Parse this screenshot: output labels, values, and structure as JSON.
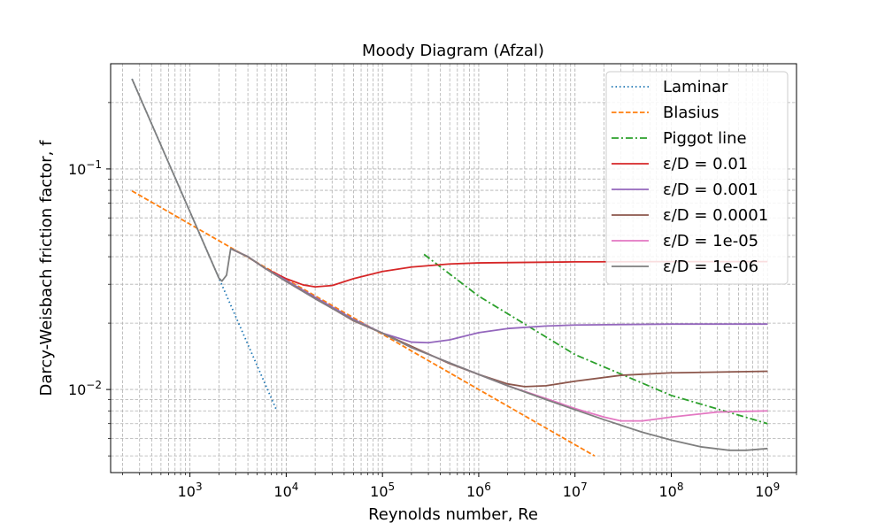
{
  "chart_data": {
    "type": "line",
    "title": "Moody Diagram (Afzal)",
    "xlabel": "Reynolds number, Re",
    "ylabel": "Darcy-Weisbach friction factor, f",
    "xscale": "log",
    "yscale": "log",
    "xlim": [
      150,
      2000000000
    ],
    "ylim": [
      0.0042,
      0.3
    ],
    "x_ticks": [
      {
        "value": 1000,
        "base": "10",
        "exp": "3"
      },
      {
        "value": 10000,
        "base": "10",
        "exp": "4"
      },
      {
        "value": 100000,
        "base": "10",
        "exp": "5"
      },
      {
        "value": 1000000,
        "base": "10",
        "exp": "6"
      },
      {
        "value": 10000000,
        "base": "10",
        "exp": "7"
      },
      {
        "value": 100000000,
        "base": "10",
        "exp": "8"
      },
      {
        "value": 1000000000,
        "base": "10",
        "exp": "9"
      }
    ],
    "y_ticks": [
      {
        "value": 0.01,
        "base": "10",
        "exp": "−2"
      },
      {
        "value": 0.1,
        "base": "10",
        "exp": "−1"
      }
    ],
    "grid": true,
    "grid_minor": true,
    "legend_position": "top-right",
    "series": [
      {
        "name": "Laminar",
        "color": "#1f77b4",
        "style": "dotted",
        "x": [
          250,
          500,
          1000,
          2000,
          4000,
          8000
        ],
        "y": [
          0.256,
          0.128,
          0.064,
          0.032,
          0.016,
          0.008
        ]
      },
      {
        "name": "Blasius",
        "color": "#ff7f0e",
        "style": "dashed",
        "x": [
          250,
          1000,
          10000,
          100000,
          1000000,
          10000000,
          16000000
        ],
        "y": [
          0.0795,
          0.0562,
          0.0316,
          0.0178,
          0.01,
          0.00562,
          0.005
        ]
      },
      {
        "name": "Piggot line",
        "color": "#2ca02c",
        "style": "dashdot",
        "x": [
          270000,
          1000000,
          10000000,
          100000000,
          1000000000
        ],
        "y": [
          0.041,
          0.0265,
          0.0144,
          0.0094,
          0.007
        ]
      },
      {
        "name": "ε/D = 0.01",
        "color": "#d62728",
        "style": "solid",
        "x": [
          2650,
          4000,
          6000,
          10000,
          15000,
          20000,
          30000,
          50000,
          100000,
          200000,
          500000,
          1000000,
          10000000,
          100000000,
          1000000000
        ],
        "y": [
          0.0435,
          0.04,
          0.0355,
          0.0318,
          0.0298,
          0.0292,
          0.0296,
          0.0318,
          0.0343,
          0.0359,
          0.0371,
          0.0375,
          0.0379,
          0.038,
          0.038
        ]
      },
      {
        "name": "ε/D = 0.001",
        "color": "#9467bd",
        "style": "solid",
        "x": [
          2650,
          4000,
          6000,
          10000,
          20000,
          50000,
          100000,
          200000,
          300000,
          500000,
          1000000,
          2000000,
          5000000,
          10000000,
          100000000,
          1000000000
        ],
        "y": [
          0.0435,
          0.04,
          0.0355,
          0.0312,
          0.0262,
          0.0208,
          0.018,
          0.0164,
          0.0163,
          0.0168,
          0.0181,
          0.0189,
          0.0194,
          0.0196,
          0.0198,
          0.0198
        ]
      },
      {
        "name": "ε/D = 0.0001",
        "color": "#8c564b",
        "style": "solid",
        "x": [
          2650,
          4000,
          6000,
          10000,
          20000,
          50000,
          100000,
          200000,
          500000,
          1000000,
          2000000,
          3000000,
          5000000,
          10000000,
          30000000,
          100000000,
          1000000000
        ],
        "y": [
          0.0435,
          0.04,
          0.0355,
          0.0309,
          0.0259,
          0.0205,
          0.018,
          0.0157,
          0.0131,
          0.0117,
          0.0106,
          0.0103,
          0.0104,
          0.0109,
          0.0116,
          0.0119,
          0.0121
        ]
      },
      {
        "name": "ε/D = 1e-05",
        "color": "#e377c2",
        "style": "solid",
        "x": [
          2650,
          4000,
          6000,
          10000,
          20000,
          50000,
          100000,
          200000,
          500000,
          1000000,
          2000000,
          5000000,
          10000000,
          20000000,
          30000000,
          50000000,
          100000000,
          300000000,
          1000000000
        ],
        "y": [
          0.0435,
          0.04,
          0.0355,
          0.0309,
          0.0258,
          0.0206,
          0.018,
          0.0155,
          0.0132,
          0.0117,
          0.0104,
          0.0091,
          0.0082,
          0.0075,
          0.0072,
          0.0072,
          0.0075,
          0.0079,
          0.008
        ]
      },
      {
        "name": "ε/D = 1e-06",
        "color": "#7f7f7f",
        "style": "solid",
        "x": [
          250,
          500,
          1000,
          2000,
          2150,
          2400,
          2650,
          4000,
          6000,
          10000,
          20000,
          50000,
          100000,
          200000,
          500000,
          1000000,
          2000000,
          5000000,
          10000000,
          20000000,
          50000000,
          100000000,
          200000000,
          400000000,
          600000000,
          1000000000
        ],
        "y": [
          0.256,
          0.128,
          0.064,
          0.032,
          0.031,
          0.033,
          0.0435,
          0.04,
          0.0355,
          0.0309,
          0.0258,
          0.0206,
          0.018,
          0.0155,
          0.0132,
          0.0117,
          0.0104,
          0.009,
          0.0081,
          0.0073,
          0.0064,
          0.0059,
          0.0055,
          0.0053,
          0.0053,
          0.0054
        ]
      }
    ]
  }
}
